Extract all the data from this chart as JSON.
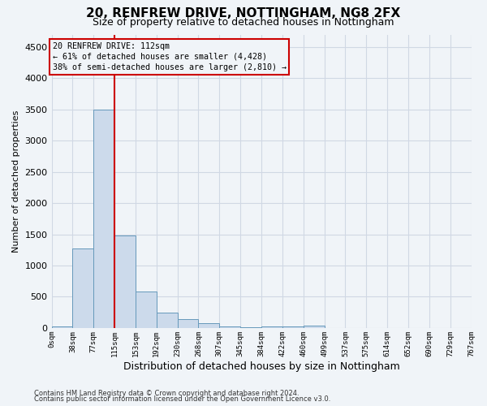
{
  "title_line1": "20, RENFREW DRIVE, NOTTINGHAM, NG8 2FX",
  "title_line2": "Size of property relative to detached houses in Nottingham",
  "xlabel": "Distribution of detached houses by size in Nottingham",
  "ylabel": "Number of detached properties",
  "bin_labels": [
    "0sqm",
    "38sqm",
    "77sqm",
    "115sqm",
    "153sqm",
    "192sqm",
    "230sqm",
    "268sqm",
    "307sqm",
    "345sqm",
    "384sqm",
    "422sqm",
    "460sqm",
    "499sqm",
    "537sqm",
    "575sqm",
    "614sqm",
    "652sqm",
    "690sqm",
    "729sqm",
    "767sqm"
  ],
  "bar_heights": [
    30,
    1270,
    3500,
    1480,
    580,
    250,
    140,
    80,
    30,
    15,
    25,
    30,
    40,
    0,
    0,
    0,
    0,
    0,
    0,
    0
  ],
  "bar_color": "#ccdaeb",
  "bar_edge_color": "#6699bb",
  "grid_color": "#d0d8e4",
  "property_size_idx": 3,
  "vline_color": "#cc0000",
  "annotation_text_line1": "20 RENFREW DRIVE: 112sqm",
  "annotation_text_line2": "← 61% of detached houses are smaller (4,428)",
  "annotation_text_line3": "38% of semi-detached houses are larger (2,810) →",
  "annotation_box_color": "#cc0000",
  "ylim": [
    0,
    4700
  ],
  "yticks": [
    0,
    500,
    1000,
    1500,
    2000,
    2500,
    3000,
    3500,
    4000,
    4500
  ],
  "footer_line1": "Contains HM Land Registry data © Crown copyright and database right 2024.",
  "footer_line2": "Contains public sector information licensed under the Open Government Licence v3.0.",
  "bg_color": "#f0f4f8",
  "title1_fontsize": 11,
  "title2_fontsize": 9,
  "ylabel_fontsize": 8,
  "xlabel_fontsize": 9
}
